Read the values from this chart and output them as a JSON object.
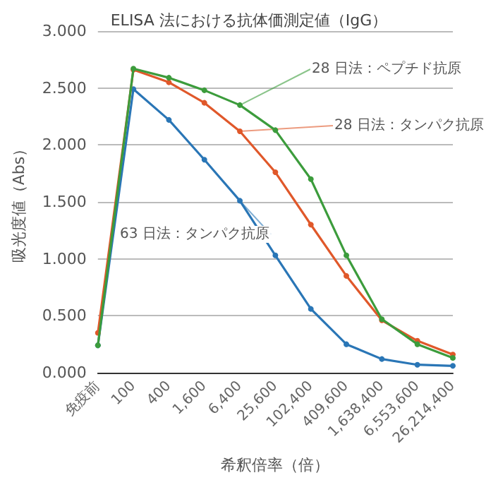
{
  "chart_data": {
    "type": "line",
    "title": "ELISA 法における抗体価測定値（IgG）",
    "xlabel": "希釈倍率（倍）",
    "ylabel": "吸光度値（Abs）",
    "categories": [
      "免疫前",
      "100",
      "400",
      "1,600",
      "6,400",
      "25,600",
      "102,400",
      "409,600",
      "1,638,400",
      "6,553,600",
      "26,214,400"
    ],
    "series": [
      {
        "name": "28 日法：ペプチド抗原",
        "color": "#3c9c3c",
        "values": [
          0.24,
          2.67,
          2.59,
          2.48,
          2.35,
          2.13,
          1.7,
          1.03,
          0.47,
          0.25,
          0.13
        ]
      },
      {
        "name": "28 日法：タンパク抗原",
        "color": "#e0582a",
        "values": [
          0.35,
          2.66,
          2.55,
          2.37,
          2.12,
          1.76,
          1.3,
          0.85,
          0.46,
          0.28,
          0.16
        ]
      },
      {
        "name": "63 日法：タンパク抗原",
        "color": "#2a76b6",
        "values": [
          0.24,
          2.49,
          2.22,
          1.87,
          1.51,
          1.03,
          0.56,
          0.25,
          0.12,
          0.07,
          0.06
        ]
      }
    ],
    "ylim": [
      0,
      3
    ],
    "yticks": [
      {
        "value": 0,
        "label": "0.000"
      },
      {
        "value": 0.5,
        "label": "0.500"
      },
      {
        "value": 1,
        "label": "1.000"
      },
      {
        "value": 1.5,
        "label": "1.500"
      },
      {
        "value": 2,
        "label": "2.000"
      },
      {
        "value": 2.5,
        "label": "2.500"
      },
      {
        "value": 3,
        "label": "3.000"
      }
    ],
    "grid": "y",
    "legend": false,
    "marker": "circle",
    "line_style": "solid"
  }
}
